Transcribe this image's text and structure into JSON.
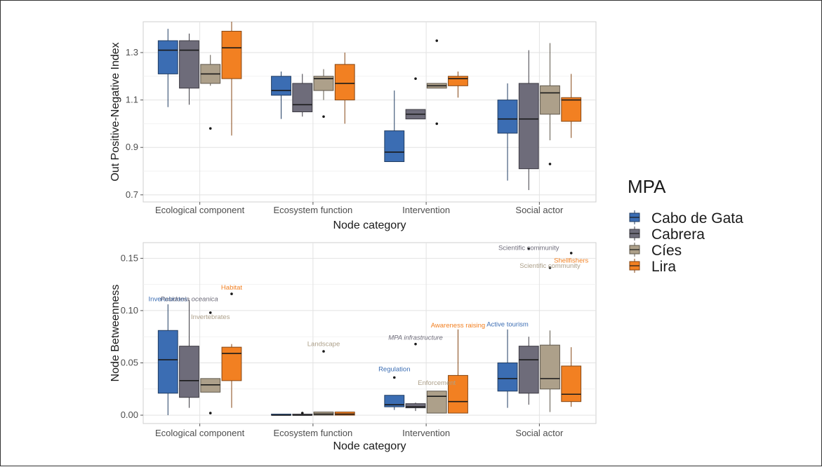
{
  "legend": {
    "title": "MPA",
    "items": [
      {
        "label": "Cabo de Gata",
        "color": "#3b6db3"
      },
      {
        "label": "Cabrera",
        "color": "#6e6c7a"
      },
      {
        "label": "Cíes",
        "color": "#ada08a"
      },
      {
        "label": "Lira",
        "color": "#f28022"
      }
    ]
  },
  "chart_data": [
    {
      "type": "box",
      "xlabel": "Node category",
      "ylabel": "Out Positive-Negative Index",
      "categories": [
        "Ecological component",
        "Ecosystem function",
        "Intervention",
        "Social actor"
      ],
      "ylim": [
        0.67,
        1.43
      ],
      "yticks": [
        0.7,
        0.9,
        1.1,
        1.3
      ],
      "grid": true,
      "series": [
        {
          "name": "Cabo de Gata",
          "boxes": [
            {
              "whisker_low": 1.07,
              "q1": 1.21,
              "median": 1.31,
              "q3": 1.35,
              "whisker_high": 1.4,
              "outliers": []
            },
            {
              "whisker_low": 1.02,
              "q1": 1.12,
              "median": 1.14,
              "q3": 1.2,
              "whisker_high": 1.22,
              "outliers": []
            },
            {
              "whisker_low": 0.84,
              "q1": 0.84,
              "median": 0.88,
              "q3": 0.97,
              "whisker_high": 1.14,
              "outliers": []
            },
            {
              "whisker_low": 0.76,
              "q1": 0.96,
              "median": 1.02,
              "q3": 1.1,
              "whisker_high": 1.17,
              "outliers": []
            }
          ]
        },
        {
          "name": "Cabrera",
          "boxes": [
            {
              "whisker_low": 1.08,
              "q1": 1.15,
              "median": 1.31,
              "q3": 1.35,
              "whisker_high": 1.38,
              "outliers": []
            },
            {
              "whisker_low": 1.03,
              "q1": 1.05,
              "median": 1.08,
              "q3": 1.17,
              "whisker_high": 1.21,
              "outliers": []
            },
            {
              "whisker_low": 1.02,
              "q1": 1.02,
              "median": 1.04,
              "q3": 1.06,
              "whisker_high": 1.06,
              "outliers": [
                1.19
              ]
            },
            {
              "whisker_low": 0.72,
              "q1": 0.81,
              "median": 1.02,
              "q3": 1.17,
              "whisker_high": 1.31,
              "outliers": []
            }
          ]
        },
        {
          "name": "Cíes",
          "boxes": [
            {
              "whisker_low": 1.16,
              "q1": 1.17,
              "median": 1.21,
              "q3": 1.25,
              "whisker_high": 1.29,
              "outliers": [
                0.98
              ]
            },
            {
              "whisker_low": 1.1,
              "q1": 1.14,
              "median": 1.19,
              "q3": 1.2,
              "whisker_high": 1.23,
              "outliers": [
                1.03
              ]
            },
            {
              "whisker_low": 1.15,
              "q1": 1.15,
              "median": 1.16,
              "q3": 1.17,
              "whisker_high": 1.17,
              "outliers": [
                1.35,
                1.0
              ]
            },
            {
              "whisker_low": 0.93,
              "q1": 1.04,
              "median": 1.13,
              "q3": 1.16,
              "whisker_high": 1.34,
              "outliers": [
                0.83
              ]
            }
          ]
        },
        {
          "name": "Lira",
          "boxes": [
            {
              "whisker_low": 0.95,
              "q1": 1.19,
              "median": 1.32,
              "q3": 1.39,
              "whisker_high": 1.43,
              "outliers": []
            },
            {
              "whisker_low": 1.0,
              "q1": 1.1,
              "median": 1.17,
              "q3": 1.25,
              "whisker_high": 1.3,
              "outliers": []
            },
            {
              "whisker_low": 1.11,
              "q1": 1.16,
              "median": 1.19,
              "q3": 1.2,
              "whisker_high": 1.22,
              "outliers": []
            },
            {
              "whisker_low": 0.94,
              "q1": 1.01,
              "median": 1.1,
              "q3": 1.11,
              "whisker_high": 1.21,
              "outliers": []
            }
          ]
        }
      ],
      "annotations": []
    },
    {
      "type": "box",
      "xlabel": "Node category",
      "ylabel": "Node Betweenness",
      "categories": [
        "Ecological component",
        "Ecosystem function",
        "Intervention",
        "Social actor"
      ],
      "ylim": [
        -0.008,
        0.165
      ],
      "yticks": [
        0.0,
        0.05,
        0.1,
        0.15
      ],
      "ytick_labels": [
        "0.00",
        "0.05",
        "0.10",
        "0.15"
      ],
      "grid": true,
      "series": [
        {
          "name": "Cabo de Gata",
          "boxes": [
            {
              "whisker_low": 0.0,
              "q1": 0.021,
              "median": 0.053,
              "q3": 0.081,
              "whisker_high": 0.106,
              "outliers": []
            },
            {
              "whisker_low": 0.0,
              "q1": 0.0,
              "median": 0.0,
              "q3": 0.001,
              "whisker_high": 0.001,
              "outliers": []
            },
            {
              "whisker_low": 0.005,
              "q1": 0.008,
              "median": 0.01,
              "q3": 0.019,
              "whisker_high": 0.019,
              "outliers": [
                0.036
              ]
            },
            {
              "whisker_low": 0.007,
              "q1": 0.023,
              "median": 0.035,
              "q3": 0.05,
              "whisker_high": 0.082,
              "outliers": []
            }
          ]
        },
        {
          "name": "Cabrera",
          "boxes": [
            {
              "whisker_low": 0.007,
              "q1": 0.017,
              "median": 0.033,
              "q3": 0.066,
              "whisker_high": 0.11,
              "outliers": []
            },
            {
              "whisker_low": 0.0,
              "q1": 0.0,
              "median": 0.0,
              "q3": 0.001,
              "whisker_high": 0.001,
              "outliers": [
                0.002
              ]
            },
            {
              "whisker_low": 0.004,
              "q1": 0.007,
              "median": 0.008,
              "q3": 0.011,
              "whisker_high": 0.012,
              "outliers": [
                0.068
              ]
            },
            {
              "whisker_low": 0.01,
              "q1": 0.021,
              "median": 0.053,
              "q3": 0.066,
              "whisker_high": 0.075,
              "outliers": [
                0.159
              ]
            }
          ]
        },
        {
          "name": "Cíes",
          "boxes": [
            {
              "whisker_low": 0.022,
              "q1": 0.022,
              "median": 0.029,
              "q3": 0.035,
              "whisker_high": 0.035,
              "outliers": [
                0.098,
                0.002
              ]
            },
            {
              "whisker_low": 0.0,
              "q1": 0.0,
              "median": 0.001,
              "q3": 0.003,
              "whisker_high": 0.003,
              "outliers": [
                0.061
              ]
            },
            {
              "whisker_low": 0.002,
              "q1": 0.002,
              "median": 0.018,
              "q3": 0.023,
              "whisker_high": 0.023,
              "outliers": []
            },
            {
              "whisker_low": 0.003,
              "q1": 0.025,
              "median": 0.035,
              "q3": 0.067,
              "whisker_high": 0.081,
              "outliers": [
                0.141
              ]
            }
          ]
        },
        {
          "name": "Lira",
          "boxes": [
            {
              "whisker_low": 0.007,
              "q1": 0.033,
              "median": 0.059,
              "q3": 0.065,
              "whisker_high": 0.068,
              "outliers": [
                0.116
              ]
            },
            {
              "whisker_low": 0.0,
              "q1": 0.0,
              "median": 0.001,
              "q3": 0.003,
              "whisker_high": 0.003,
              "outliers": []
            },
            {
              "whisker_low": 0.002,
              "q1": 0.002,
              "median": 0.013,
              "q3": 0.038,
              "whisker_high": 0.082,
              "outliers": []
            },
            {
              "whisker_low": 0.008,
              "q1": 0.013,
              "median": 0.02,
              "q3": 0.047,
              "whisker_high": 0.065,
              "outliers": [
                0.155
              ]
            }
          ]
        }
      ],
      "annotations": [
        {
          "text": "Invertebrates",
          "series": "Cabo de Gata",
          "category": 0,
          "y": 0.109,
          "italic": false
        },
        {
          "text": "Habitat",
          "series": "Lira",
          "category": 0,
          "y": 0.12,
          "italic": false
        },
        {
          "text": "Posidonia oceanica",
          "series": "Cabrera",
          "category": 0,
          "y": 0.109,
          "italic": true
        },
        {
          "text": "Invertebrates",
          "series": "Cíes",
          "category": 0,
          "y": 0.092,
          "italic": false
        },
        {
          "text": "Landscape",
          "series": "Cíes",
          "category": 1,
          "y": 0.066,
          "italic": false
        },
        {
          "text": "Awareness raising",
          "series": "Lira",
          "category": 2,
          "y": 0.084,
          "italic": false
        },
        {
          "text": "MPA infrastructure",
          "series": "Cabrera",
          "category": 2,
          "y": 0.072,
          "italic": true
        },
        {
          "text": "Regulation",
          "series": "Cabo de Gata",
          "category": 2,
          "y": 0.042,
          "italic": false
        },
        {
          "text": "Enforcement",
          "series": "Cíes",
          "category": 2,
          "y": 0.029,
          "italic": false
        },
        {
          "text": "Active tourism",
          "series": "Cabo de Gata",
          "category": 3,
          "y": 0.085,
          "italic": false
        },
        {
          "text": "Scientific community",
          "series": "Cabrera",
          "category": 3,
          "y": 0.158,
          "italic": false
        },
        {
          "text": "Scientific community",
          "series": "Cíes",
          "category": 3,
          "y": 0.141,
          "italic": false
        },
        {
          "text": "Shellfishers",
          "series": "Lira",
          "category": 3,
          "y": 0.146,
          "italic": false
        }
      ]
    }
  ]
}
